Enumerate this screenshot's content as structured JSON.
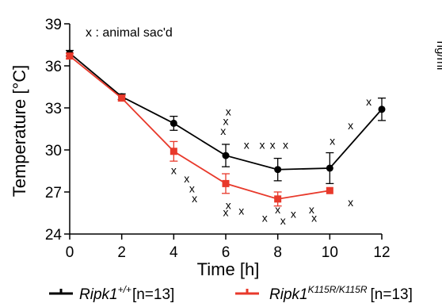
{
  "chart_data": {
    "type": "line",
    "xlabel": "Time [h]",
    "ylabel": "Temperature [°C]",
    "xlim": [
      0,
      12
    ],
    "ylim": [
      24,
      39
    ],
    "x_ticks": [
      0,
      2,
      4,
      6,
      8,
      10,
      12
    ],
    "y_ticks": [
      24,
      27,
      30,
      33,
      36,
      39
    ],
    "annotation": "x : animal sac'd",
    "grid": false,
    "legend_position": "bottom",
    "series": [
      {
        "legend_main": "Ripk1",
        "legend_sup": "+/+",
        "legend_suffix": "[n=13]",
        "color": "#000000",
        "marker": "circle",
        "x": [
          0,
          2,
          4,
          6,
          8,
          10,
          12
        ],
        "y": [
          36.9,
          33.8,
          31.9,
          29.6,
          28.6,
          28.7,
          32.9
        ],
        "err": [
          0.2,
          0.2,
          0.5,
          0.8,
          0.8,
          1.1,
          0.8
        ]
      },
      {
        "legend_main": "Ripk1",
        "legend_sup": "K115R/K115R",
        "legend_suffix": "[n=13]",
        "color": "#e8392b",
        "marker": "square",
        "x": [
          0,
          2,
          4,
          6,
          8,
          10
        ],
        "y": [
          36.7,
          33.7,
          29.9,
          27.6,
          26.5,
          27.1
        ],
        "err": [
          0.2,
          0.2,
          0.7,
          0.7,
          0.5,
          0.0
        ]
      }
    ],
    "sacrificed_marks": [
      {
        "x": 4.0,
        "y": 28.5
      },
      {
        "x": 4.5,
        "y": 27.9
      },
      {
        "x": 4.7,
        "y": 27.2
      },
      {
        "x": 4.8,
        "y": 26.5
      },
      {
        "x": 5.9,
        "y": 31.3
      },
      {
        "x": 6.0,
        "y": 32.0
      },
      {
        "x": 6.1,
        "y": 32.7
      },
      {
        "x": 6.8,
        "y": 30.3
      },
      {
        "x": 7.4,
        "y": 30.3
      },
      {
        "x": 7.8,
        "y": 30.3
      },
      {
        "x": 8.3,
        "y": 30.3
      },
      {
        "x": 6.0,
        "y": 25.5
      },
      {
        "x": 6.1,
        "y": 26.0
      },
      {
        "x": 6.6,
        "y": 25.6
      },
      {
        "x": 7.5,
        "y": 25.1
      },
      {
        "x": 8.0,
        "y": 25.7
      },
      {
        "x": 8.2,
        "y": 24.9
      },
      {
        "x": 8.6,
        "y": 25.4
      },
      {
        "x": 9.3,
        "y": 25.7
      },
      {
        "x": 9.4,
        "y": 25.1
      },
      {
        "x": 10.1,
        "y": 30.6
      },
      {
        "x": 10.8,
        "y": 26.2
      },
      {
        "x": 10.8,
        "y": 31.7
      },
      {
        "x": 11.5,
        "y": 33.4
      }
    ]
  },
  "cut_label": "ng/ml"
}
